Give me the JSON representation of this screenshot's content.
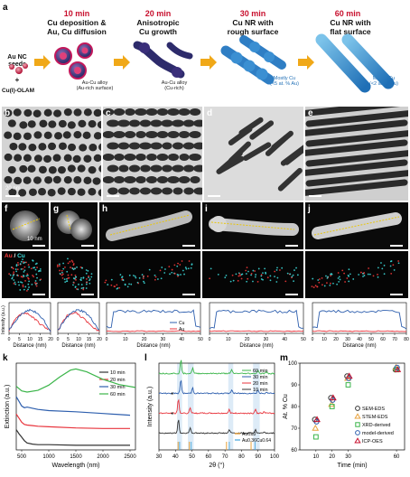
{
  "panel_a": {
    "letter": "a",
    "seed_label": "Au NC\nseeds",
    "plus": "+",
    "reagent": "Cu(I)-OLAM",
    "stages": [
      {
        "time": "10 min",
        "title": "Cu deposition &\nAu, Cu diffusion",
        "note": "Au-Cu alloy\n(Au-rich surface)"
      },
      {
        "time": "20 min",
        "title": "Anisotropic\nCu growth",
        "note": "Au-Cu alloy\n(Cu-rich)"
      },
      {
        "time": "30 min",
        "title": "Cu NR with\nrough surface",
        "note": "Mostly Cu\n(<5 at. % Au)"
      },
      {
        "time": "60 min",
        "title": "Cu NR with\nflat surface",
        "note": "Mostly Cu\n(<2 at. % Au)"
      }
    ]
  },
  "tem_panels": [
    {
      "letter": "b",
      "scale": "20 nm"
    },
    {
      "letter": "c",
      "scale": ""
    },
    {
      "letter": "d",
      "scale": ""
    },
    {
      "letter": "e",
      "scale": ""
    }
  ],
  "haadf_panels": [
    {
      "letter": "f",
      "scale": "10 nm"
    },
    {
      "letter": "g",
      "scale": ""
    },
    {
      "letter": "h",
      "scale": ""
    },
    {
      "letter": "i",
      "scale": ""
    },
    {
      "letter": "j",
      "scale": ""
    }
  ],
  "map_label": {
    "au": "Au",
    "sep": " / ",
    "cu": "Cu"
  },
  "line_profiles": {
    "ylabel": "Intensity (a.u.)",
    "xlabel": "Distance (nm)",
    "legend": [
      "Cu",
      "Au"
    ],
    "ticks": [
      [
        "0",
        "5",
        "10",
        "15",
        "20"
      ],
      [
        "0",
        "5",
        "10",
        "15",
        "20"
      ],
      [
        "0",
        "10",
        "20",
        "30",
        "40",
        "50"
      ],
      [
        "0",
        "10",
        "20",
        "30",
        "40",
        "50"
      ],
      [
        "0",
        "10",
        "20",
        "30",
        "40",
        "50",
        "60",
        "70",
        "80"
      ]
    ]
  },
  "chart_data": [
    {
      "panel": "k",
      "type": "line",
      "xlabel": "Wavelength (nm)",
      "ylabel": "Extinction (a.u.)",
      "xlim": [
        400,
        2600
      ],
      "xticks": [
        "500",
        "1000",
        "1500",
        "2000",
        "2500"
      ],
      "series": [
        {
          "name": "10 min",
          "color": "#333333",
          "x": [
            400,
            450,
            500,
            550,
            600,
            700,
            800,
            1000,
            1500,
            2000,
            2500
          ],
          "y": [
            0.35,
            0.28,
            0.22,
            0.16,
            0.12,
            0.1,
            0.09,
            0.09,
            0.08,
            0.08,
            0.08
          ]
        },
        {
          "name": "20 min",
          "color": "#e8343c",
          "x": [
            400,
            450,
            500,
            550,
            600,
            700,
            800,
            1000,
            1500,
            2000,
            2500
          ],
          "y": [
            0.62,
            0.55,
            0.48,
            0.44,
            0.43,
            0.42,
            0.41,
            0.4,
            0.38,
            0.37,
            0.37
          ]
        },
        {
          "name": "30 min",
          "color": "#2e5fae",
          "x": [
            400,
            450,
            500,
            550,
            600,
            700,
            800,
            1000,
            1500,
            2000,
            2500
          ],
          "y": [
            0.92,
            0.84,
            0.76,
            0.73,
            0.74,
            0.72,
            0.7,
            0.68,
            0.66,
            0.63,
            0.6
          ]
        },
        {
          "name": "60 min",
          "color": "#3bb54a",
          "x": [
            400,
            500,
            600,
            800,
            1000,
            1200,
            1400,
            1500,
            1700,
            2000,
            2300,
            2600
          ],
          "y": [
            1.1,
            1.02,
            1.0,
            1.03,
            1.12,
            1.26,
            1.38,
            1.4,
            1.35,
            1.22,
            1.13,
            1.08
          ]
        }
      ]
    },
    {
      "panel": "l",
      "type": "line",
      "xlabel": "2θ (°)",
      "ylabel": "Intensity (a.u.)",
      "xlim": [
        30,
        100
      ],
      "xticks": [
        "30",
        "40",
        "50",
        "60",
        "70",
        "80",
        "90",
        "100"
      ],
      "series": [
        {
          "name": "10 min",
          "color": "#333333"
        },
        {
          "name": "20 min",
          "color": "#e8343c"
        },
        {
          "name": "30 min",
          "color": "#2e5fae"
        },
        {
          "name": "60 min",
          "color": "#3bb54a"
        }
      ],
      "reference_legend": [
        "AuCu3",
        "Au0.36Cu0.64"
      ],
      "markers": [
        "*",
        "*"
      ]
    },
    {
      "panel": "m",
      "type": "scatter",
      "xlabel": "Time (min)",
      "ylabel": "At. % Cu",
      "xlim": [
        0,
        65
      ],
      "ylim": [
        60,
        100
      ],
      "xticks": [
        "10",
        "20",
        "30",
        "60"
      ],
      "yticks": [
        "60",
        "70",
        "80",
        "90",
        "100"
      ],
      "series": [
        {
          "name": "SEM-EDS",
          "color": "#333333",
          "marker": "circle",
          "x": [
            10,
            20,
            30,
            60
          ],
          "y": [
            74,
            84,
            94,
            97
          ]
        },
        {
          "name": "STEM-EDS",
          "color": "#e8a23c",
          "marker": "triangle",
          "x": [
            10,
            20,
            30,
            60
          ],
          "y": [
            70,
            81,
            93,
            98
          ]
        },
        {
          "name": "XRD-derived",
          "color": "#3bb54a",
          "marker": "square",
          "x": [
            10,
            20,
            30,
            60
          ],
          "y": [
            66,
            80,
            90,
            97
          ]
        },
        {
          "name": "model-derived",
          "color": "#2e5fae",
          "marker": "circle",
          "x": [
            10,
            20,
            30,
            60
          ],
          "y": [
            73,
            83,
            93,
            98
          ]
        },
        {
          "name": "ICP-OES",
          "color": "#c8102e",
          "marker": "triangle",
          "x": [
            10,
            20,
            30,
            60
          ],
          "y": [
            74,
            84,
            94,
            97
          ]
        }
      ]
    }
  ]
}
